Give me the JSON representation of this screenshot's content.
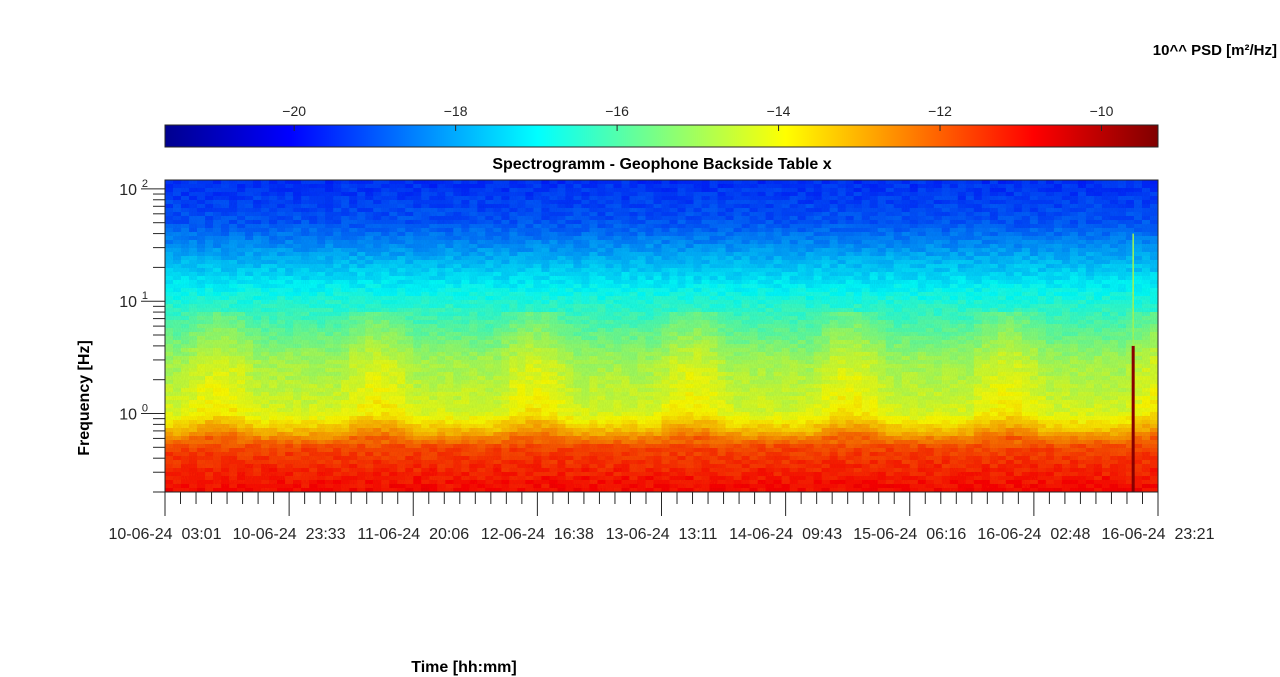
{
  "chart_data": {
    "type": "heatmap",
    "title": "Spectrogramm - Geophone Backside Table x",
    "xlabel": "Time [hh:mm]",
    "ylabel": "Frequency [Hz]",
    "y_scale": "log",
    "ylim": [
      0.2,
      120
    ],
    "y_ticks": [
      {
        "value": 1,
        "label": "10",
        "exp": "0"
      },
      {
        "value": 10,
        "label": "10",
        "exp": "1"
      },
      {
        "value": 100,
        "label": "10",
        "exp": "2"
      }
    ],
    "x_tick_labels": [
      "10-06-24  03:01",
      "10-06-24  23:33",
      "11-06-24  20:06",
      "12-06-24  16:38",
      "13-06-24  13:11",
      "14-06-24  09:43",
      "15-06-24  06:16",
      "16-06-24  02:48",
      "16-06-24  23:21"
    ],
    "colorbar": {
      "label": "10^^ PSD [m²/Hz]",
      "range": [
        -21.6,
        -9.3
      ],
      "ticks": [
        -20,
        -18,
        -16,
        -14,
        -12,
        -10
      ],
      "colormap": "jet",
      "placement": "top"
    },
    "psd_profile_log10": [
      {
        "freq_hz": 0.2,
        "psd": -10.9
      },
      {
        "freq_hz": 0.5,
        "psd": -11.7
      },
      {
        "freq_hz": 0.7,
        "psd": -13.2
      },
      {
        "freq_hz": 1.0,
        "psd": -14.3
      },
      {
        "freq_hz": 3.0,
        "psd": -15.0
      },
      {
        "freq_hz": 7.0,
        "psd": -16.2
      },
      {
        "freq_hz": 10.0,
        "psd": -16.6
      },
      {
        "freq_hz": 20.0,
        "psd": -17.6
      },
      {
        "freq_hz": 50.0,
        "psd": -19.0
      },
      {
        "freq_hz": 120.0,
        "psd": -19.5
      }
    ],
    "events": [
      {
        "description": "broadband spike",
        "time_fraction": 0.975,
        "psd_peak": -9.5
      }
    ]
  }
}
